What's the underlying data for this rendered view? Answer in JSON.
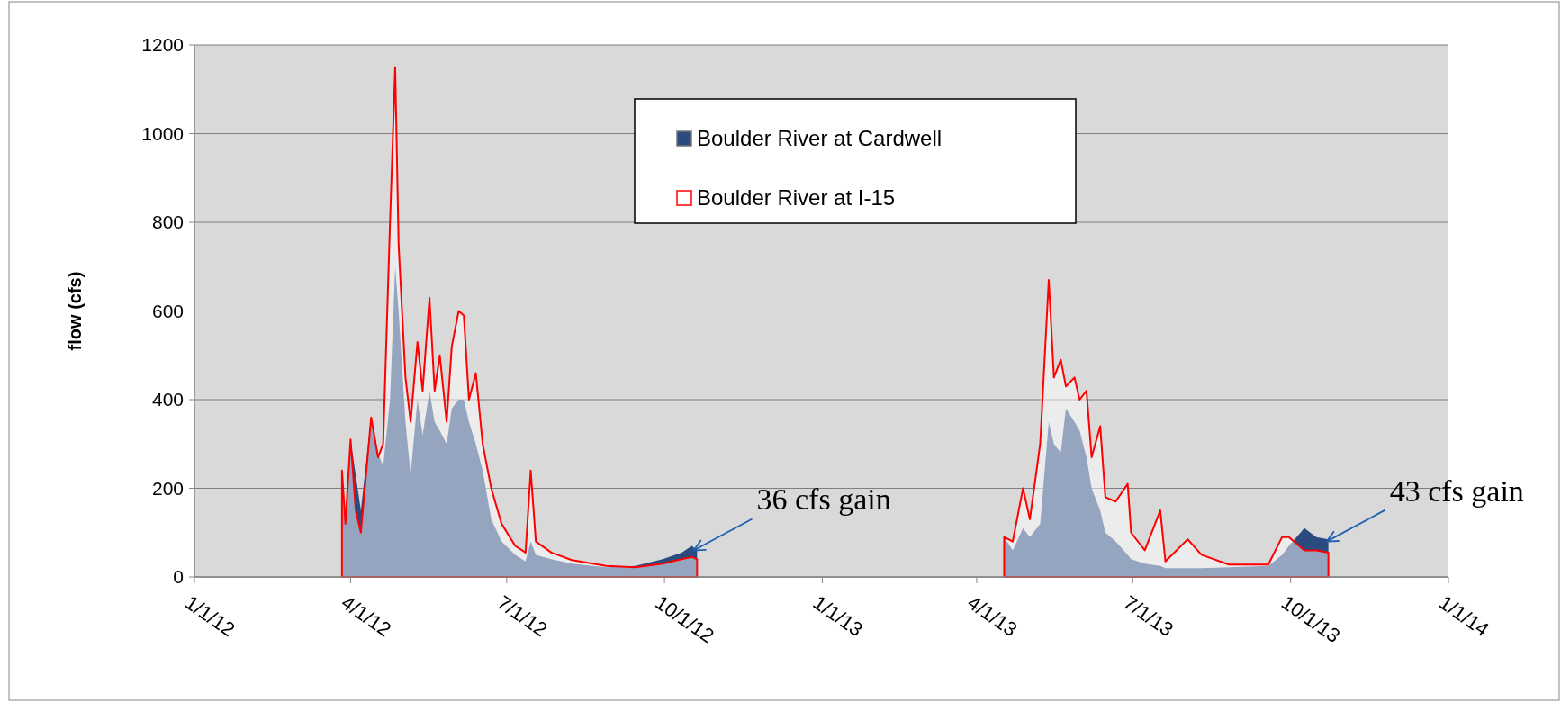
{
  "chart_data": {
    "type": "area",
    "ylabel": "flow (cfs)",
    "xlim": [
      "2012-01-01",
      "2014-01-01"
    ],
    "ylim": [
      0,
      1200
    ],
    "yticks": [
      0,
      200,
      400,
      600,
      800,
      1000,
      1200
    ],
    "xticks": [
      {
        "value": "2012-01-01",
        "label": "1/1/12"
      },
      {
        "value": "2012-04-01",
        "label": "4/1/12"
      },
      {
        "value": "2012-07-01",
        "label": "7/1/12"
      },
      {
        "value": "2012-10-01",
        "label": "10/1/12"
      },
      {
        "value": "2013-01-01",
        "label": "1/1/13"
      },
      {
        "value": "2013-04-01",
        "label": "4/1/13"
      },
      {
        "value": "2013-07-01",
        "label": "7/1/13"
      },
      {
        "value": "2013-10-01",
        "label": "10/1/13"
      },
      {
        "value": "2014-01-01",
        "label": "1/1/14"
      }
    ],
    "grid": "y",
    "legend": "top",
    "series": [
      {
        "name": "Boulder River at Cardwell",
        "color": "#2a4a80",
        "x": [
          "2012-03-27",
          "2012-03-29",
          "2012-04-01",
          "2012-04-04",
          "2012-04-07",
          "2012-04-13",
          "2012-04-17",
          "2012-04-20",
          "2012-04-24",
          "2012-04-27",
          "2012-04-29",
          "2012-05-03",
          "2012-05-06",
          "2012-05-10",
          "2012-05-13",
          "2012-05-17",
          "2012-05-20",
          "2012-05-23",
          "2012-05-27",
          "2012-05-30",
          "2012-06-03",
          "2012-06-06",
          "2012-06-09",
          "2012-06-13",
          "2012-06-17",
          "2012-06-22",
          "2012-06-28",
          "2012-07-06",
          "2012-07-12",
          "2012-07-15",
          "2012-07-18",
          "2012-07-27",
          "2012-08-08",
          "2012-08-28",
          "2012-09-14",
          "2012-09-30",
          "2012-10-11",
          "2012-10-17",
          "2012-10-20",
          "2013-01-01",
          "2013-04-17",
          "2013-04-22",
          "2013-04-28",
          "2013-05-02",
          "2013-05-08",
          "2013-05-13",
          "2013-05-16",
          "2013-05-20",
          "2013-05-23",
          "2013-05-28",
          "2013-05-31",
          "2013-06-04",
          "2013-06-07",
          "2013-06-12",
          "2013-06-15",
          "2013-06-21",
          "2013-06-28",
          "2013-06-30",
          "2013-07-08",
          "2013-07-17",
          "2013-07-20",
          "2013-08-02",
          "2013-08-10",
          "2013-08-26",
          "2013-09-18",
          "2013-09-26",
          "2013-09-30",
          "2013-10-09",
          "2013-10-16",
          "2013-10-23"
        ],
        "values": [
          200,
          130,
          310,
          230,
          150,
          360,
          280,
          250,
          400,
          700,
          600,
          350,
          230,
          400,
          320,
          420,
          350,
          330,
          300,
          380,
          400,
          400,
          350,
          300,
          240,
          130,
          80,
          50,
          35,
          80,
          50,
          40,
          30,
          22,
          25,
          40,
          55,
          70,
          60,
          null,
          90,
          60,
          110,
          90,
          120,
          350,
          300,
          280,
          380,
          350,
          330,
          270,
          200,
          150,
          100,
          80,
          50,
          40,
          30,
          25,
          20,
          20,
          20,
          22,
          25,
          50,
          70,
          110,
          90,
          85
        ]
      },
      {
        "name": "Boulder River at I-15",
        "color": "#ff0000",
        "x": [
          "2012-03-27",
          "2012-03-29",
          "2012-04-01",
          "2012-04-04",
          "2012-04-07",
          "2012-04-13",
          "2012-04-17",
          "2012-04-20",
          "2012-04-24",
          "2012-04-27",
          "2012-04-29",
          "2012-05-03",
          "2012-05-06",
          "2012-05-10",
          "2012-05-13",
          "2012-05-17",
          "2012-05-20",
          "2012-05-23",
          "2012-05-27",
          "2012-05-30",
          "2012-06-03",
          "2012-06-06",
          "2012-06-09",
          "2012-06-13",
          "2012-06-17",
          "2012-06-22",
          "2012-06-28",
          "2012-07-06",
          "2012-07-12",
          "2012-07-15",
          "2012-07-18",
          "2012-07-27",
          "2012-08-08",
          "2012-08-28",
          "2012-09-14",
          "2012-09-30",
          "2012-10-11",
          "2012-10-17",
          "2012-10-20",
          "2013-01-01",
          "2013-04-17",
          "2013-04-22",
          "2013-04-28",
          "2013-05-02",
          "2013-05-08",
          "2013-05-13",
          "2013-05-16",
          "2013-05-20",
          "2013-05-23",
          "2013-05-28",
          "2013-05-31",
          "2013-06-04",
          "2013-06-07",
          "2013-06-12",
          "2013-06-15",
          "2013-06-21",
          "2013-06-28",
          "2013-06-30",
          "2013-07-08",
          "2013-07-17",
          "2013-07-20",
          "2013-08-02",
          "2013-08-10",
          "2013-08-26",
          "2013-09-18",
          "2013-09-26",
          "2013-09-30",
          "2013-10-09",
          "2013-10-16",
          "2013-10-23"
        ],
        "values": [
          240,
          120,
          310,
          150,
          100,
          360,
          270,
          300,
          800,
          1150,
          750,
          450,
          350,
          530,
          420,
          630,
          420,
          500,
          350,
          520,
          600,
          590,
          400,
          460,
          300,
          200,
          120,
          70,
          55,
          240,
          80,
          55,
          38,
          25,
          22,
          30,
          40,
          45,
          40,
          null,
          90,
          80,
          200,
          130,
          300,
          670,
          450,
          490,
          430,
          450,
          400,
          420,
          270,
          340,
          180,
          170,
          210,
          100,
          60,
          150,
          35,
          85,
          50,
          28,
          28,
          90,
          90,
          60,
          60,
          55
        ]
      }
    ],
    "annotations": [
      {
        "text": "36 cfs gain",
        "x": "2012-10-18",
        "y": 60
      },
      {
        "text": "43 cfs gain",
        "x": "2013-10-22",
        "y": 80
      }
    ]
  }
}
